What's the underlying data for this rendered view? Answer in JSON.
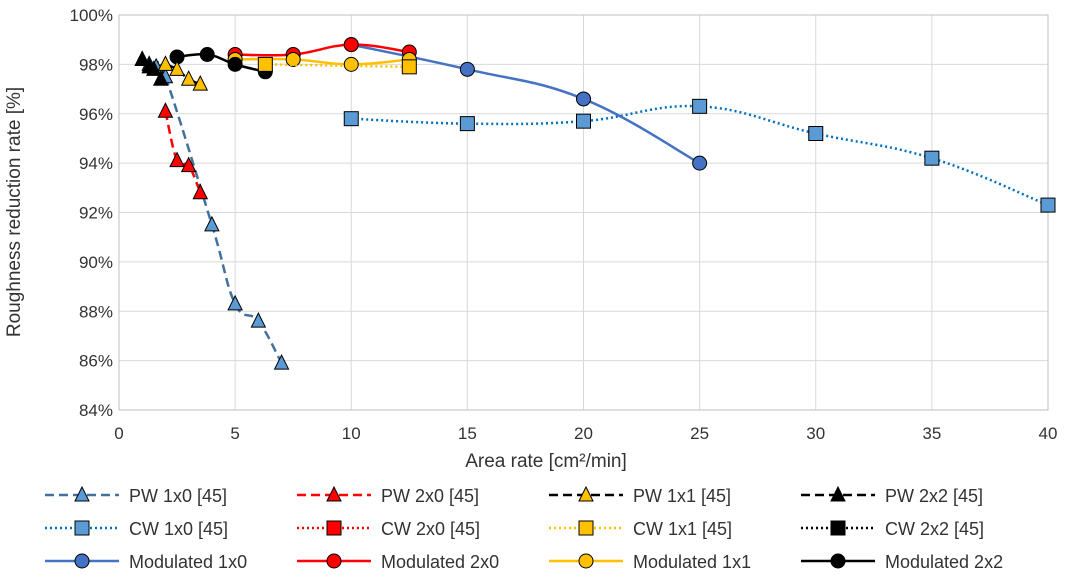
{
  "chart_data": {
    "type": "scatter",
    "title": "",
    "xlabel": "Area rate [cm²/min]",
    "ylabel": "Roughness reduction rate [%]",
    "xlim": [
      0,
      40
    ],
    "ylim": [
      84,
      100
    ],
    "xticks": [
      0,
      5,
      10,
      15,
      20,
      25,
      30,
      35,
      40
    ],
    "yticks": [
      84,
      86,
      88,
      90,
      92,
      94,
      96,
      98,
      100
    ],
    "xtick_labels": [
      "0",
      "5",
      "10",
      "15",
      "20",
      "25",
      "30",
      "35",
      "40"
    ],
    "ytick_labels": [
      "84%",
      "86%",
      "88%",
      "90%",
      "92%",
      "94%",
      "96%",
      "98%",
      "100%"
    ],
    "grid": true,
    "legend_position": "bottom",
    "series": [
      {
        "name": "PW 1x0 [45]",
        "color": "#41719C",
        "fill": "#5B9BD5",
        "marker": "triangle",
        "line": "dashed",
        "smooth": true,
        "points": [
          [
            1.0,
            98.2
          ],
          [
            1.3,
            98.0
          ],
          [
            1.6,
            97.9
          ],
          [
            2.0,
            97.5
          ],
          [
            4.0,
            91.5
          ],
          [
            5.0,
            88.3
          ],
          [
            6.0,
            87.6
          ],
          [
            7.0,
            85.9
          ]
        ]
      },
      {
        "name": "PW 2x0 [45]",
        "color": "#FF0000",
        "fill": "#FF0000",
        "marker": "triangle",
        "line": "dashed",
        "smooth": true,
        "points": [
          [
            2.0,
            96.1
          ],
          [
            2.5,
            94.1
          ],
          [
            3.0,
            93.9
          ],
          [
            3.5,
            92.8
          ]
        ]
      },
      {
        "name": "PW 1x1 [45]",
        "color": "#000000",
        "fill": "#FFC000",
        "marker": "triangle",
        "line": "dashed",
        "smooth": true,
        "points": [
          [
            2.0,
            98.0
          ],
          [
            2.5,
            97.8
          ],
          [
            3.0,
            97.4
          ],
          [
            3.5,
            97.2
          ]
        ]
      },
      {
        "name": "PW 2x2 [45]",
        "color": "#000000",
        "fill": "#000000",
        "marker": "triangle",
        "line": "dashed",
        "smooth": true,
        "points": [
          [
            1.0,
            98.2
          ],
          [
            1.3,
            97.9
          ],
          [
            1.5,
            97.8
          ],
          [
            1.8,
            97.4
          ]
        ]
      },
      {
        "name": "CW 1x0 [45]",
        "color": "#0070C0",
        "fill": "#5B9BD5",
        "marker": "square",
        "line": "dotted",
        "smooth": true,
        "points": [
          [
            10,
            95.8
          ],
          [
            15,
            95.6
          ],
          [
            20,
            95.7
          ],
          [
            25,
            96.3
          ],
          [
            30,
            95.2
          ],
          [
            35,
            94.2
          ],
          [
            40,
            92.3
          ]
        ]
      },
      {
        "name": "CW 2x0 [45]",
        "color": "#FF0000",
        "fill": "#FF0000",
        "marker": "square",
        "line": "dotted",
        "smooth": true,
        "points": []
      },
      {
        "name": "CW 1x1 [45]",
        "color": "#FFC000",
        "fill": "#FFC000",
        "marker": "square",
        "line": "dotted",
        "smooth": true,
        "points": [
          [
            6.3,
            98.0
          ],
          [
            12.5,
            97.9
          ]
        ]
      },
      {
        "name": "CW 2x2 [45]",
        "color": "#000000",
        "fill": "#000000",
        "marker": "square",
        "line": "dotted",
        "smooth": true,
        "points": []
      },
      {
        "name": "Modulated 1x0",
        "color": "#4472C4",
        "fill": "#4472C4",
        "marker": "circle",
        "line": "solid",
        "smooth": true,
        "points": [
          [
            10,
            98.8
          ],
          [
            15,
            97.8
          ],
          [
            20,
            96.6
          ],
          [
            25,
            94.0
          ]
        ]
      },
      {
        "name": "Modulated 2x0",
        "color": "#FF0000",
        "fill": "#FF0000",
        "marker": "circle",
        "line": "solid",
        "smooth": true,
        "points": [
          [
            5.0,
            98.4
          ],
          [
            7.5,
            98.4
          ],
          [
            10,
            98.8
          ],
          [
            12.5,
            98.5
          ]
        ]
      },
      {
        "name": "Modulated 1x1",
        "color": "#FFC000",
        "fill": "#FFC000",
        "marker": "circle",
        "line": "solid",
        "smooth": true,
        "points": [
          [
            5.0,
            98.2
          ],
          [
            7.5,
            98.2
          ],
          [
            10,
            98.0
          ],
          [
            12.5,
            98.2
          ]
        ]
      },
      {
        "name": "Modulated 2x2",
        "color": "#000000",
        "fill": "#000000",
        "marker": "circle",
        "line": "solid",
        "smooth": true,
        "points": [
          [
            2.5,
            98.3
          ],
          [
            3.8,
            98.4
          ],
          [
            5.0,
            98.0
          ],
          [
            6.3,
            97.7
          ]
        ]
      }
    ]
  }
}
